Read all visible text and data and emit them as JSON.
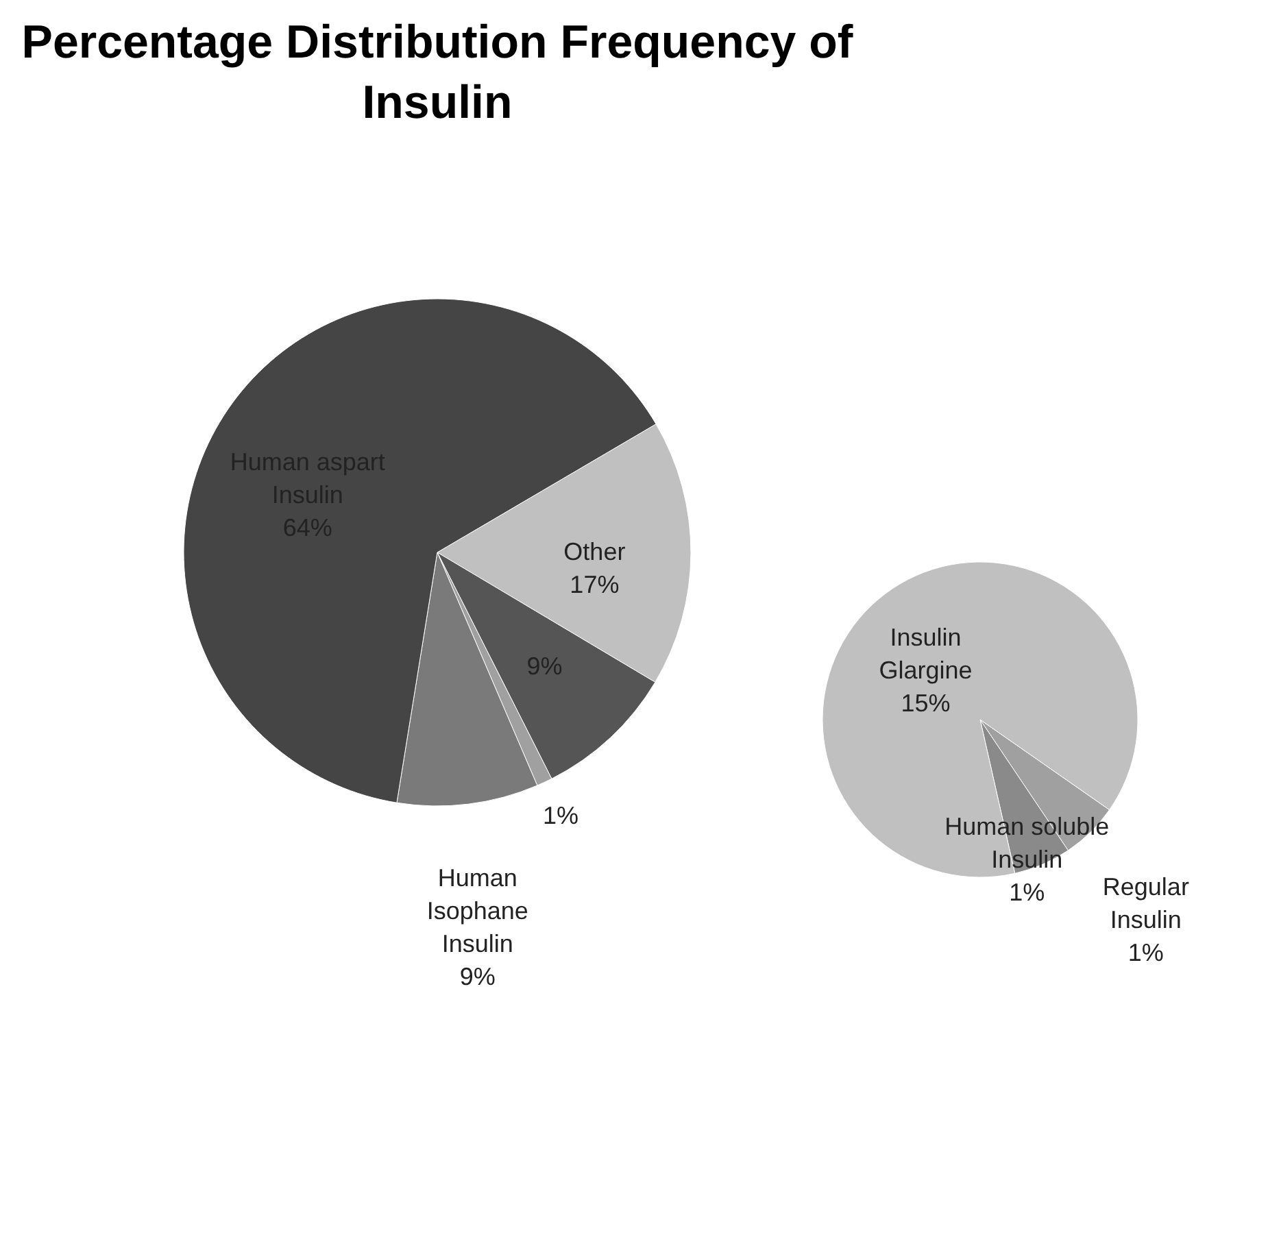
{
  "chart_data": [
    {
      "type": "pie",
      "title": "Percentage Distribution Frequency of Insulin",
      "categories": [
        "Other",
        null,
        null,
        "Human Isophane Insulin",
        "Human aspart Insulin"
      ],
      "values": [
        17,
        9,
        1,
        9,
        64
      ],
      "value_labels": [
        "17%",
        "9%",
        "1%",
        "9%",
        "64%"
      ],
      "colors": [
        "#c0c0c0",
        "#555555",
        "#a0a0a0",
        "#7a7a7a",
        "#454545"
      ]
    },
    {
      "type": "pie",
      "categories": [
        "Regular Insulin",
        "Human soluble Insulin",
        "Insulin Glargine"
      ],
      "values": [
        1,
        1,
        15
      ],
      "value_labels": [
        "1%",
        "1%",
        "15%"
      ],
      "colors": [
        "#a0a0a0",
        "#8a8a8a",
        "#c0c0c0"
      ]
    }
  ]
}
